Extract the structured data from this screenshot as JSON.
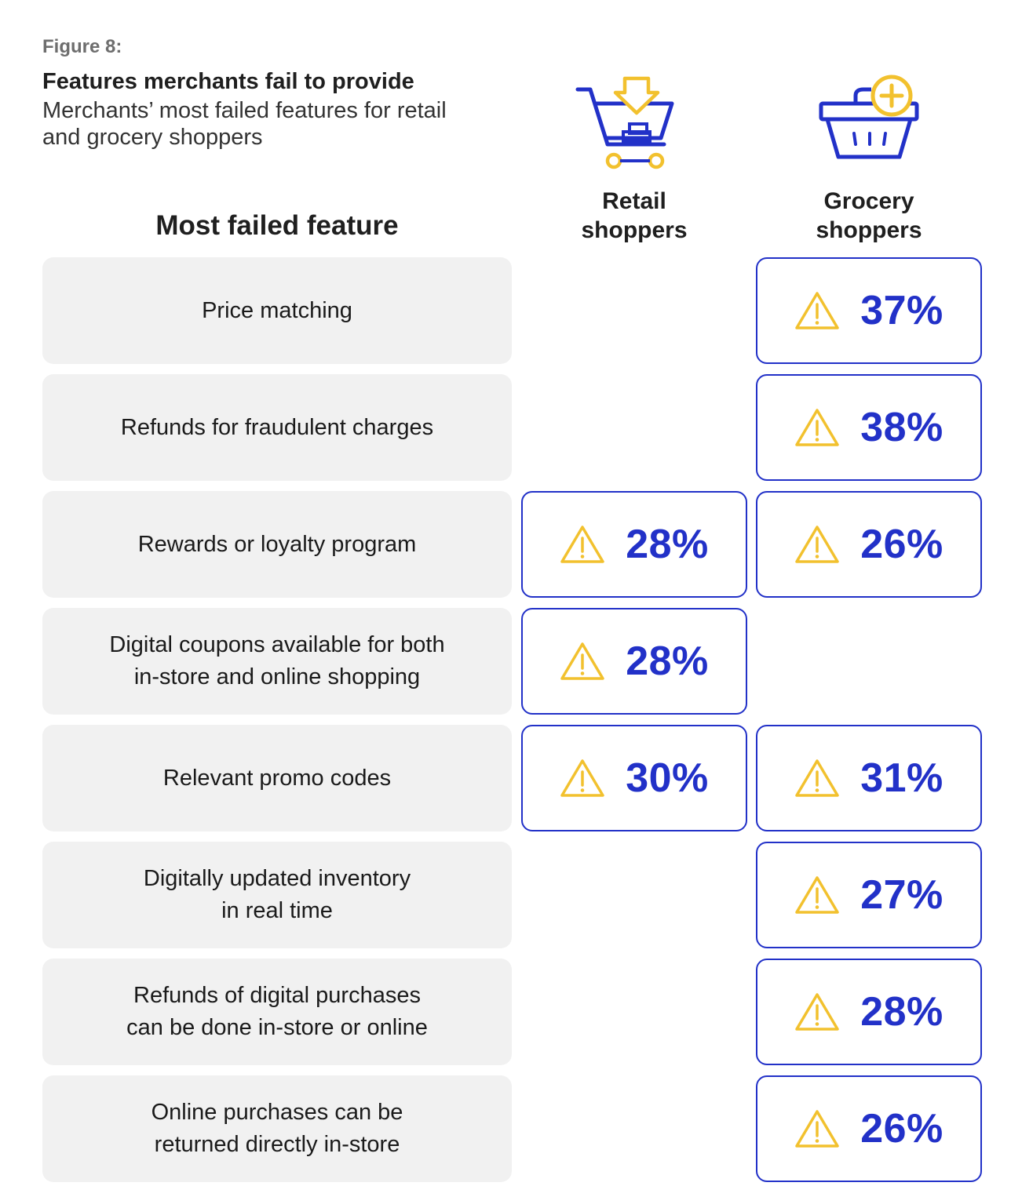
{
  "figure_label": "Figure 8:",
  "title": "Features merchants fail to provide",
  "subtitle": "Merchants’ most failed features for retail and grocery shoppers",
  "colors": {
    "accent": "#2231c8",
    "warning": "#f2c12e",
    "row_bg": "#f1f1f1"
  },
  "chart_data": {
    "type": "table",
    "row_header": "Most failed feature",
    "columns": [
      {
        "key": "retail",
        "label": "Retail\nshoppers",
        "icon": "shopping-cart-icon"
      },
      {
        "key": "grocery",
        "label": "Grocery\nshoppers",
        "icon": "shopping-basket-icon"
      }
    ],
    "rows": [
      {
        "feature": "Price matching",
        "retail": null,
        "grocery": "37%"
      },
      {
        "feature": "Refunds for fraudulent charges",
        "retail": null,
        "grocery": "38%"
      },
      {
        "feature": "Rewards or loyalty program",
        "retail": "28%",
        "grocery": "26%"
      },
      {
        "feature": "Digital coupons available for both\nin-store and online shopping",
        "retail": "28%",
        "grocery": null
      },
      {
        "feature": "Relevant promo codes",
        "retail": "30%",
        "grocery": "31%"
      },
      {
        "feature": "Digitally updated inventory\nin real time",
        "retail": null,
        "grocery": "27%"
      },
      {
        "feature": "Refunds of digital purchases\ncan be done in-store or online",
        "retail": null,
        "grocery": "28%"
      },
      {
        "feature": "Online purchases can be\nreturned directly in-store",
        "retail": null,
        "grocery": "26%"
      }
    ],
    "value_icon": "warning-icon"
  }
}
